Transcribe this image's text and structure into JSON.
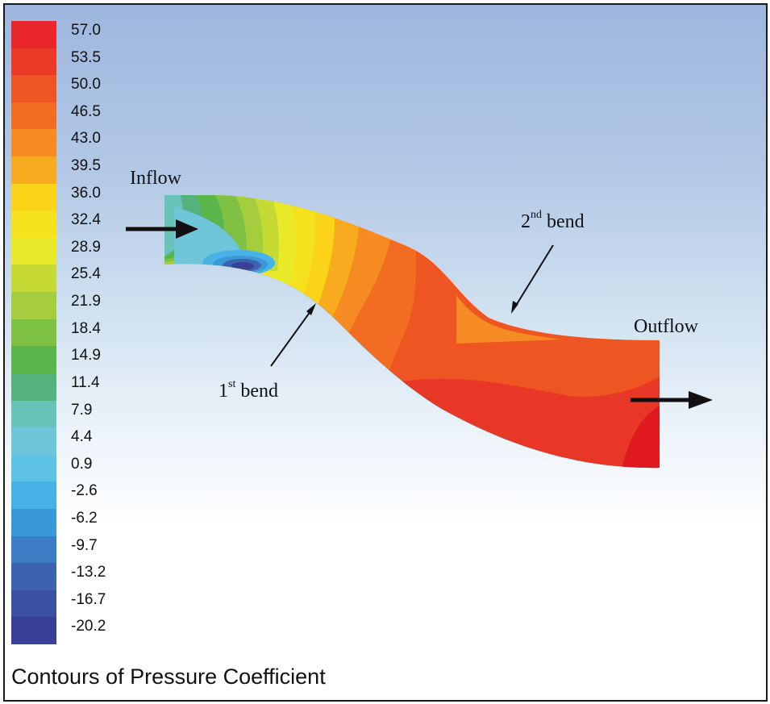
{
  "figure": {
    "caption": "Contours of Pressure Coefficient",
    "legend": {
      "values": [
        "57.0",
        "53.5",
        "50.0",
        "46.5",
        "43.0",
        "39.5",
        "36.0",
        "32.4",
        "28.9",
        "25.4",
        "21.9",
        "18.4",
        "14.9",
        "11.4",
        "7.9",
        "4.4",
        "0.9",
        "-2.6",
        "-6.2",
        "-9.7",
        "-13.2",
        "-16.7",
        "-20.2"
      ],
      "colors": [
        "#e8262b",
        "#ea3a26",
        "#ee5522",
        "#f26c22",
        "#f58b22",
        "#f8ab1e",
        "#fbd319",
        "#f6e21c",
        "#e9e92a",
        "#c7da33",
        "#a6cd3d",
        "#7fc143",
        "#5ab54a",
        "#55b27c",
        "#6ac3b8",
        "#6fc6d9",
        "#5ec2e5",
        "#47b2e6",
        "#3a97d8",
        "#3b7cc4",
        "#3b63b1",
        "#3a50a3",
        "#3a4098"
      ]
    },
    "annotations": {
      "inflow": "Inflow",
      "outflow": "Outflow",
      "first_bend_number": "1",
      "first_bend_sup": "st",
      "first_bend_word": " bend",
      "second_bend_number": "2",
      "second_bend_sup": "nd",
      "second_bend_word": " bend"
    }
  }
}
